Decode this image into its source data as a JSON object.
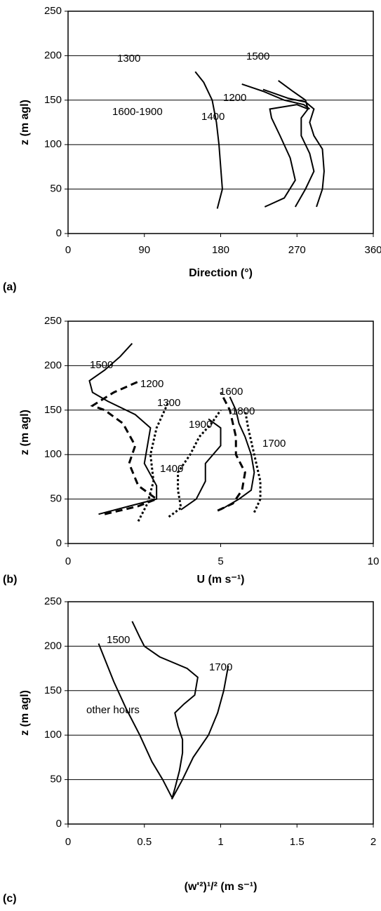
{
  "chart_data": [
    {
      "type": "line",
      "panel_label": "(a)",
      "xlabel": "Direction (°)",
      "ylabel": "z (m agl)",
      "xlim": [
        0,
        360
      ],
      "xticks": [
        0,
        90,
        180,
        270,
        360
      ],
      "ylim": [
        0,
        250
      ],
      "yticks": [
        0,
        50,
        100,
        150,
        200,
        250
      ],
      "grid": true,
      "series": [
        {
          "name": "1600-1900",
          "color": "#000000",
          "dash": "solid",
          "x": [
            176,
            182,
            180,
            178,
            175,
            170,
            160,
            150
          ],
          "values": [
            28,
            50,
            75,
            100,
            125,
            150,
            170,
            182
          ]
        },
        {
          "name": "1400",
          "color": "#000000",
          "dash": "solid",
          "x": [
            232,
            255,
            268,
            262,
            250,
            240,
            238,
            270,
            283
          ],
          "values": [
            30,
            40,
            60,
            85,
            110,
            130,
            140,
            145,
            140
          ]
        },
        {
          "name": "1300",
          "color": "#000000",
          "dash": "solid",
          "x": [
            205,
            230,
            255,
            278,
            285
          ],
          "values": [
            168,
            160,
            150,
            145,
            140
          ]
        },
        {
          "name": "1500",
          "color": "#000000",
          "dash": "solid",
          "x": [
            248,
            265,
            280,
            283,
            275,
            275,
            285,
            290,
            280,
            268
          ],
          "values": [
            172,
            160,
            150,
            140,
            130,
            110,
            90,
            70,
            50,
            30
          ]
        },
        {
          "name": "1200",
          "color": "#000000",
          "dash": "solid",
          "x": [
            230,
            260,
            280,
            290,
            285,
            290,
            300,
            302,
            300,
            293
          ],
          "values": [
            162,
            152,
            148,
            140,
            125,
            110,
            95,
            70,
            50,
            30
          ]
        }
      ]
    },
    {
      "type": "line",
      "panel_label": "(b)",
      "xlabel": "U (m s⁻¹)",
      "ylabel": "z (m agl)",
      "xlim": [
        0,
        10
      ],
      "xticks": [
        0,
        5,
        10
      ],
      "ylim": [
        0,
        250
      ],
      "yticks": [
        0,
        50,
        100,
        150,
        200,
        250
      ],
      "grid": true,
      "series": [
        {
          "name": "1500",
          "color": "#000000",
          "dash": "solid",
          "x": [
            1.0,
            2.0,
            2.9,
            2.9,
            2.5,
            2.6,
            2.7,
            2.2,
            1.3,
            0.8,
            0.7,
            1.2,
            1.7,
            2.1
          ],
          "values": [
            33,
            42,
            50,
            65,
            90,
            110,
            130,
            145,
            160,
            170,
            183,
            195,
            210,
            225
          ]
        },
        {
          "name": "1200",
          "color": "#000000",
          "dash": "dashed",
          "x": [
            1.2,
            2.3,
            2.9,
            2.3,
            2.0,
            2.2,
            1.8,
            1.2,
            0.8,
            1.5,
            2.3
          ],
          "values": [
            33,
            42,
            50,
            65,
            90,
            110,
            135,
            150,
            155,
            170,
            182
          ]
        },
        {
          "name": "1300",
          "color": "#000000",
          "dash": "dotted",
          "x": [
            2.3,
            2.6,
            2.8,
            2.7,
            2.9,
            3.1,
            3.3
          ],
          "values": [
            25,
            45,
            70,
            100,
            130,
            145,
            160
          ]
        },
        {
          "name": "1600",
          "color": "#000000",
          "dash": "dashed",
          "x": [
            4.9,
            5.4,
            5.7,
            5.8,
            5.5,
            5.5,
            5.3,
            5.0
          ],
          "values": [
            37,
            45,
            60,
            80,
            100,
            120,
            150,
            170
          ]
        },
        {
          "name": "1800",
          "color": "#000000",
          "dash": "solid",
          "x": [
            5.0,
            5.6,
            6.0,
            6.1,
            6.0,
            5.8,
            5.6,
            5.5,
            5.3
          ],
          "values": [
            38,
            50,
            60,
            80,
            100,
            120,
            135,
            150,
            165
          ]
        },
        {
          "name": "1900",
          "color": "#000000",
          "dash": "solid",
          "x": [
            3.7,
            4.2,
            4.5,
            4.5,
            5.0,
            5.0,
            4.6
          ],
          "values": [
            38,
            50,
            70,
            90,
            110,
            130,
            140
          ]
        },
        {
          "name": "1700",
          "color": "#000000",
          "dash": "dotted",
          "x": [
            6.1,
            6.3,
            6.3,
            6.1,
            5.9,
            5.8
          ],
          "values": [
            35,
            50,
            70,
            100,
            130,
            150
          ]
        },
        {
          "name": "1400",
          "color": "#000000",
          "dash": "dotted",
          "x": [
            3.3,
            3.7,
            3.6,
            3.6,
            4.0,
            4.3,
            4.7,
            5.0
          ],
          "values": [
            30,
            40,
            60,
            80,
            100,
            120,
            135,
            150
          ]
        }
      ]
    },
    {
      "type": "line",
      "panel_label": "(c)",
      "xlabel": "(w'²)¹/² (m s⁻¹)",
      "ylabel": "z (m agl)",
      "xlim": [
        0,
        2
      ],
      "xticks": [
        0,
        0.5,
        1,
        1.5,
        2
      ],
      "ylim": [
        0,
        250
      ],
      "yticks": [
        0,
        50,
        100,
        150,
        200,
        250
      ],
      "grid": true,
      "series": [
        {
          "name": "1500",
          "color": "#000000",
          "dash": "solid",
          "x": [
            0.68,
            0.7,
            0.73,
            0.75,
            0.75,
            0.72,
            0.7,
            0.76,
            0.83,
            0.85,
            0.78,
            0.6,
            0.5,
            0.47,
            0.42
          ],
          "values": [
            28,
            40,
            60,
            80,
            95,
            110,
            125,
            135,
            145,
            165,
            175,
            188,
            200,
            210,
            228
          ]
        },
        {
          "name": "1700",
          "color": "#000000",
          "dash": "solid",
          "x": [
            0.68,
            0.75,
            0.82,
            0.92,
            0.98,
            1.02,
            1.05
          ],
          "values": [
            28,
            50,
            75,
            100,
            125,
            150,
            178
          ]
        },
        {
          "name": "other hours",
          "color": "#000000",
          "dash": "solid",
          "x": [
            0.68,
            0.62,
            0.55,
            0.47,
            0.38,
            0.3,
            0.2
          ],
          "values": [
            30,
            50,
            70,
            100,
            130,
            160,
            203
          ]
        }
      ]
    }
  ]
}
